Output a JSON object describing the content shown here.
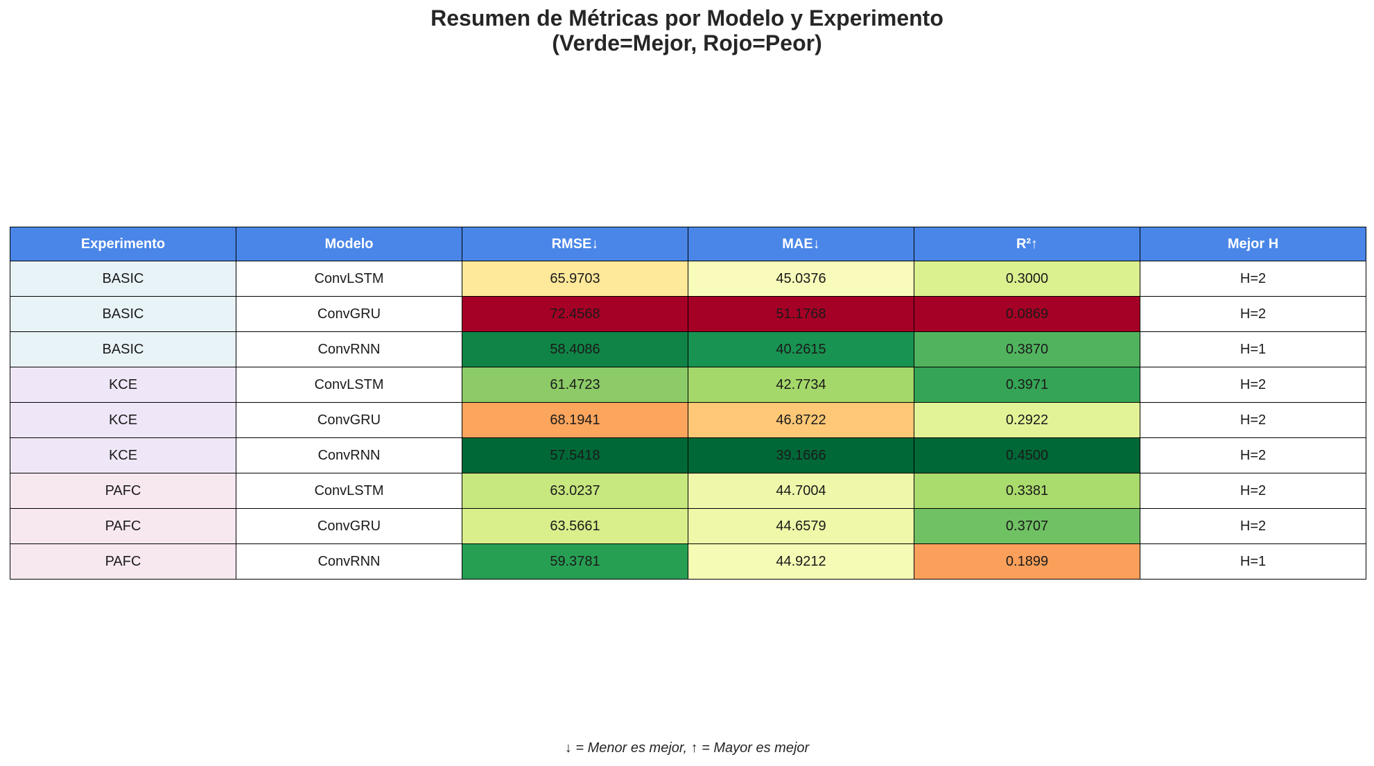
{
  "title_line1": "Resumen de Métricas por Modelo y Experimento",
  "title_line2": "(Verde=Mejor, Rojo=Peor)",
  "footnote": "↓ = Menor es mejor, ↑ = Mayor es mejor",
  "colors": {
    "header_bg": "#4a86e8",
    "header_text": "#ffffff",
    "experiment_bg": {
      "BASIC": "#e8f3f8",
      "KCE": "#efe7f7",
      "PAFC": "#f7e8f0"
    },
    "cell_bg": "#ffffff"
  },
  "chart_data": {
    "type": "table",
    "title": "Resumen de Métricas por Modelo y Experimento (Verde=Mejor, Rojo=Peor)",
    "columns": [
      "Experimento",
      "Modelo",
      "RMSE↓",
      "MAE↓",
      "R²↑",
      "Mejor H"
    ],
    "rows": [
      {
        "experimento": "BASIC",
        "modelo": "ConvLSTM",
        "rmse": "65.9703",
        "mae": "45.0376",
        "r2": "0.3000",
        "mejor_h": "H=2",
        "colors": [
          "#fee89a",
          "#f9fbba",
          "#dbf08f"
        ]
      },
      {
        "experimento": "BASIC",
        "modelo": "ConvGRU",
        "rmse": "72.4568",
        "mae": "51.1768",
        "r2": "0.0869",
        "mejor_h": "H=2",
        "colors": [
          "#a50026",
          "#a50026",
          "#a50026"
        ]
      },
      {
        "experimento": "BASIC",
        "modelo": "ConvRNN",
        "rmse": "58.4086",
        "mae": "40.2615",
        "r2": "0.3870",
        "mejor_h": "H=1",
        "colors": [
          "#108446",
          "#199351",
          "#51b35e"
        ]
      },
      {
        "experimento": "KCE",
        "modelo": "ConvLSTM",
        "rmse": "61.4723",
        "mae": "42.7734",
        "r2": "0.3971",
        "mejor_h": "H=2",
        "colors": [
          "#8ccb67",
          "#a5d86a",
          "#36a456"
        ]
      },
      {
        "experimento": "KCE",
        "modelo": "ConvGRU",
        "rmse": "68.1941",
        "mae": "46.8722",
        "r2": "0.2922",
        "mejor_h": "H=2",
        "colors": [
          "#fca55d",
          "#fec877",
          "#e2f397"
        ]
      },
      {
        "experimento": "KCE",
        "modelo": "ConvRNN",
        "rmse": "57.5418",
        "mae": "39.1666",
        "r2": "0.4500",
        "mejor_h": "H=2",
        "colors": [
          "#006837",
          "#006837",
          "#006837"
        ]
      },
      {
        "experimento": "PAFC",
        "modelo": "ConvLSTM",
        "rmse": "63.0237",
        "mae": "44.7004",
        "r2": "0.3381",
        "mejor_h": "H=2",
        "colors": [
          "#c7e77f",
          "#eff8aa",
          "#aadb6d"
        ]
      },
      {
        "experimento": "PAFC",
        "modelo": "ConvGRU",
        "rmse": "63.5661",
        "mae": "44.6579",
        "r2": "0.3707",
        "mejor_h": "H=2",
        "colors": [
          "#d9ef8b",
          "#eef8a8",
          "#70c164"
        ]
      },
      {
        "experimento": "PAFC",
        "modelo": "ConvRNN",
        "rmse": "59.3781",
        "mae": "44.9212",
        "r2": "0.1899",
        "mejor_h": "H=1",
        "colors": [
          "#279f53",
          "#f5fab5",
          "#fba05b"
        ]
      }
    ]
  }
}
